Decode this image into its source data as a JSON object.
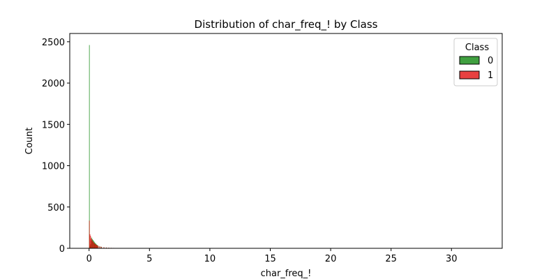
{
  "chart_data": {
    "type": "histogram",
    "title": "Distribution of char_freq_! by Class",
    "xlabel": "char_freq_!",
    "ylabel": "Count",
    "xlim": [
      -1.6,
      34.2
    ],
    "ylim": [
      0,
      2600
    ],
    "xticks": [
      0,
      5,
      10,
      15,
      20,
      25,
      30
    ],
    "yticks": [
      0,
      500,
      1000,
      1500,
      2000,
      2500
    ],
    "grid": false,
    "legend": {
      "title": "Class",
      "position": "top-right"
    },
    "series": [
      {
        "name": "0",
        "color": "#008000",
        "bins": [
          {
            "x": 0.0,
            "count": 2460
          },
          {
            "x": 0.05,
            "count": 30
          },
          {
            "x": 0.1,
            "count": 50
          },
          {
            "x": 0.15,
            "count": 95
          },
          {
            "x": 0.2,
            "count": 130
          },
          {
            "x": 0.25,
            "count": 110
          },
          {
            "x": 0.3,
            "count": 100
          },
          {
            "x": 0.35,
            "count": 90
          },
          {
            "x": 0.4,
            "count": 80
          },
          {
            "x": 0.45,
            "count": 70
          },
          {
            "x": 0.5,
            "count": 60
          },
          {
            "x": 0.55,
            "count": 55
          },
          {
            "x": 0.6,
            "count": 45
          },
          {
            "x": 0.65,
            "count": 40
          },
          {
            "x": 0.7,
            "count": 35
          },
          {
            "x": 0.8,
            "count": 28
          },
          {
            "x": 0.9,
            "count": 22
          },
          {
            "x": 1.0,
            "count": 18
          },
          {
            "x": 1.2,
            "count": 12
          },
          {
            "x": 1.4,
            "count": 9
          },
          {
            "x": 1.6,
            "count": 7
          },
          {
            "x": 1.8,
            "count": 5
          },
          {
            "x": 2.0,
            "count": 4
          },
          {
            "x": 2.5,
            "count": 2
          },
          {
            "x": 3.0,
            "count": 1
          },
          {
            "x": 5.8,
            "count": 3
          }
        ]
      },
      {
        "name": "1",
        "color": "#e00000",
        "bins": [
          {
            "x": 0.0,
            "count": 335
          },
          {
            "x": 0.05,
            "count": 170
          },
          {
            "x": 0.1,
            "count": 150
          },
          {
            "x": 0.15,
            "count": 120
          },
          {
            "x": 0.2,
            "count": 110
          },
          {
            "x": 0.25,
            "count": 90
          },
          {
            "x": 0.3,
            "count": 85
          },
          {
            "x": 0.35,
            "count": 70
          },
          {
            "x": 0.4,
            "count": 65
          },
          {
            "x": 0.45,
            "count": 55
          },
          {
            "x": 0.5,
            "count": 50
          },
          {
            "x": 0.55,
            "count": 45
          },
          {
            "x": 0.6,
            "count": 40
          },
          {
            "x": 0.65,
            "count": 35
          },
          {
            "x": 0.7,
            "count": 30
          },
          {
            "x": 0.8,
            "count": 25
          },
          {
            "x": 0.9,
            "count": 22
          },
          {
            "x": 1.0,
            "count": 18
          },
          {
            "x": 1.2,
            "count": 14
          },
          {
            "x": 1.4,
            "count": 10
          },
          {
            "x": 1.6,
            "count": 8
          },
          {
            "x": 1.8,
            "count": 6
          },
          {
            "x": 2.0,
            "count": 5
          },
          {
            "x": 2.5,
            "count": 3
          },
          {
            "x": 3.0,
            "count": 2
          },
          {
            "x": 5.8,
            "count": 2
          },
          {
            "x": 32.4,
            "count": 1
          }
        ]
      }
    ]
  }
}
